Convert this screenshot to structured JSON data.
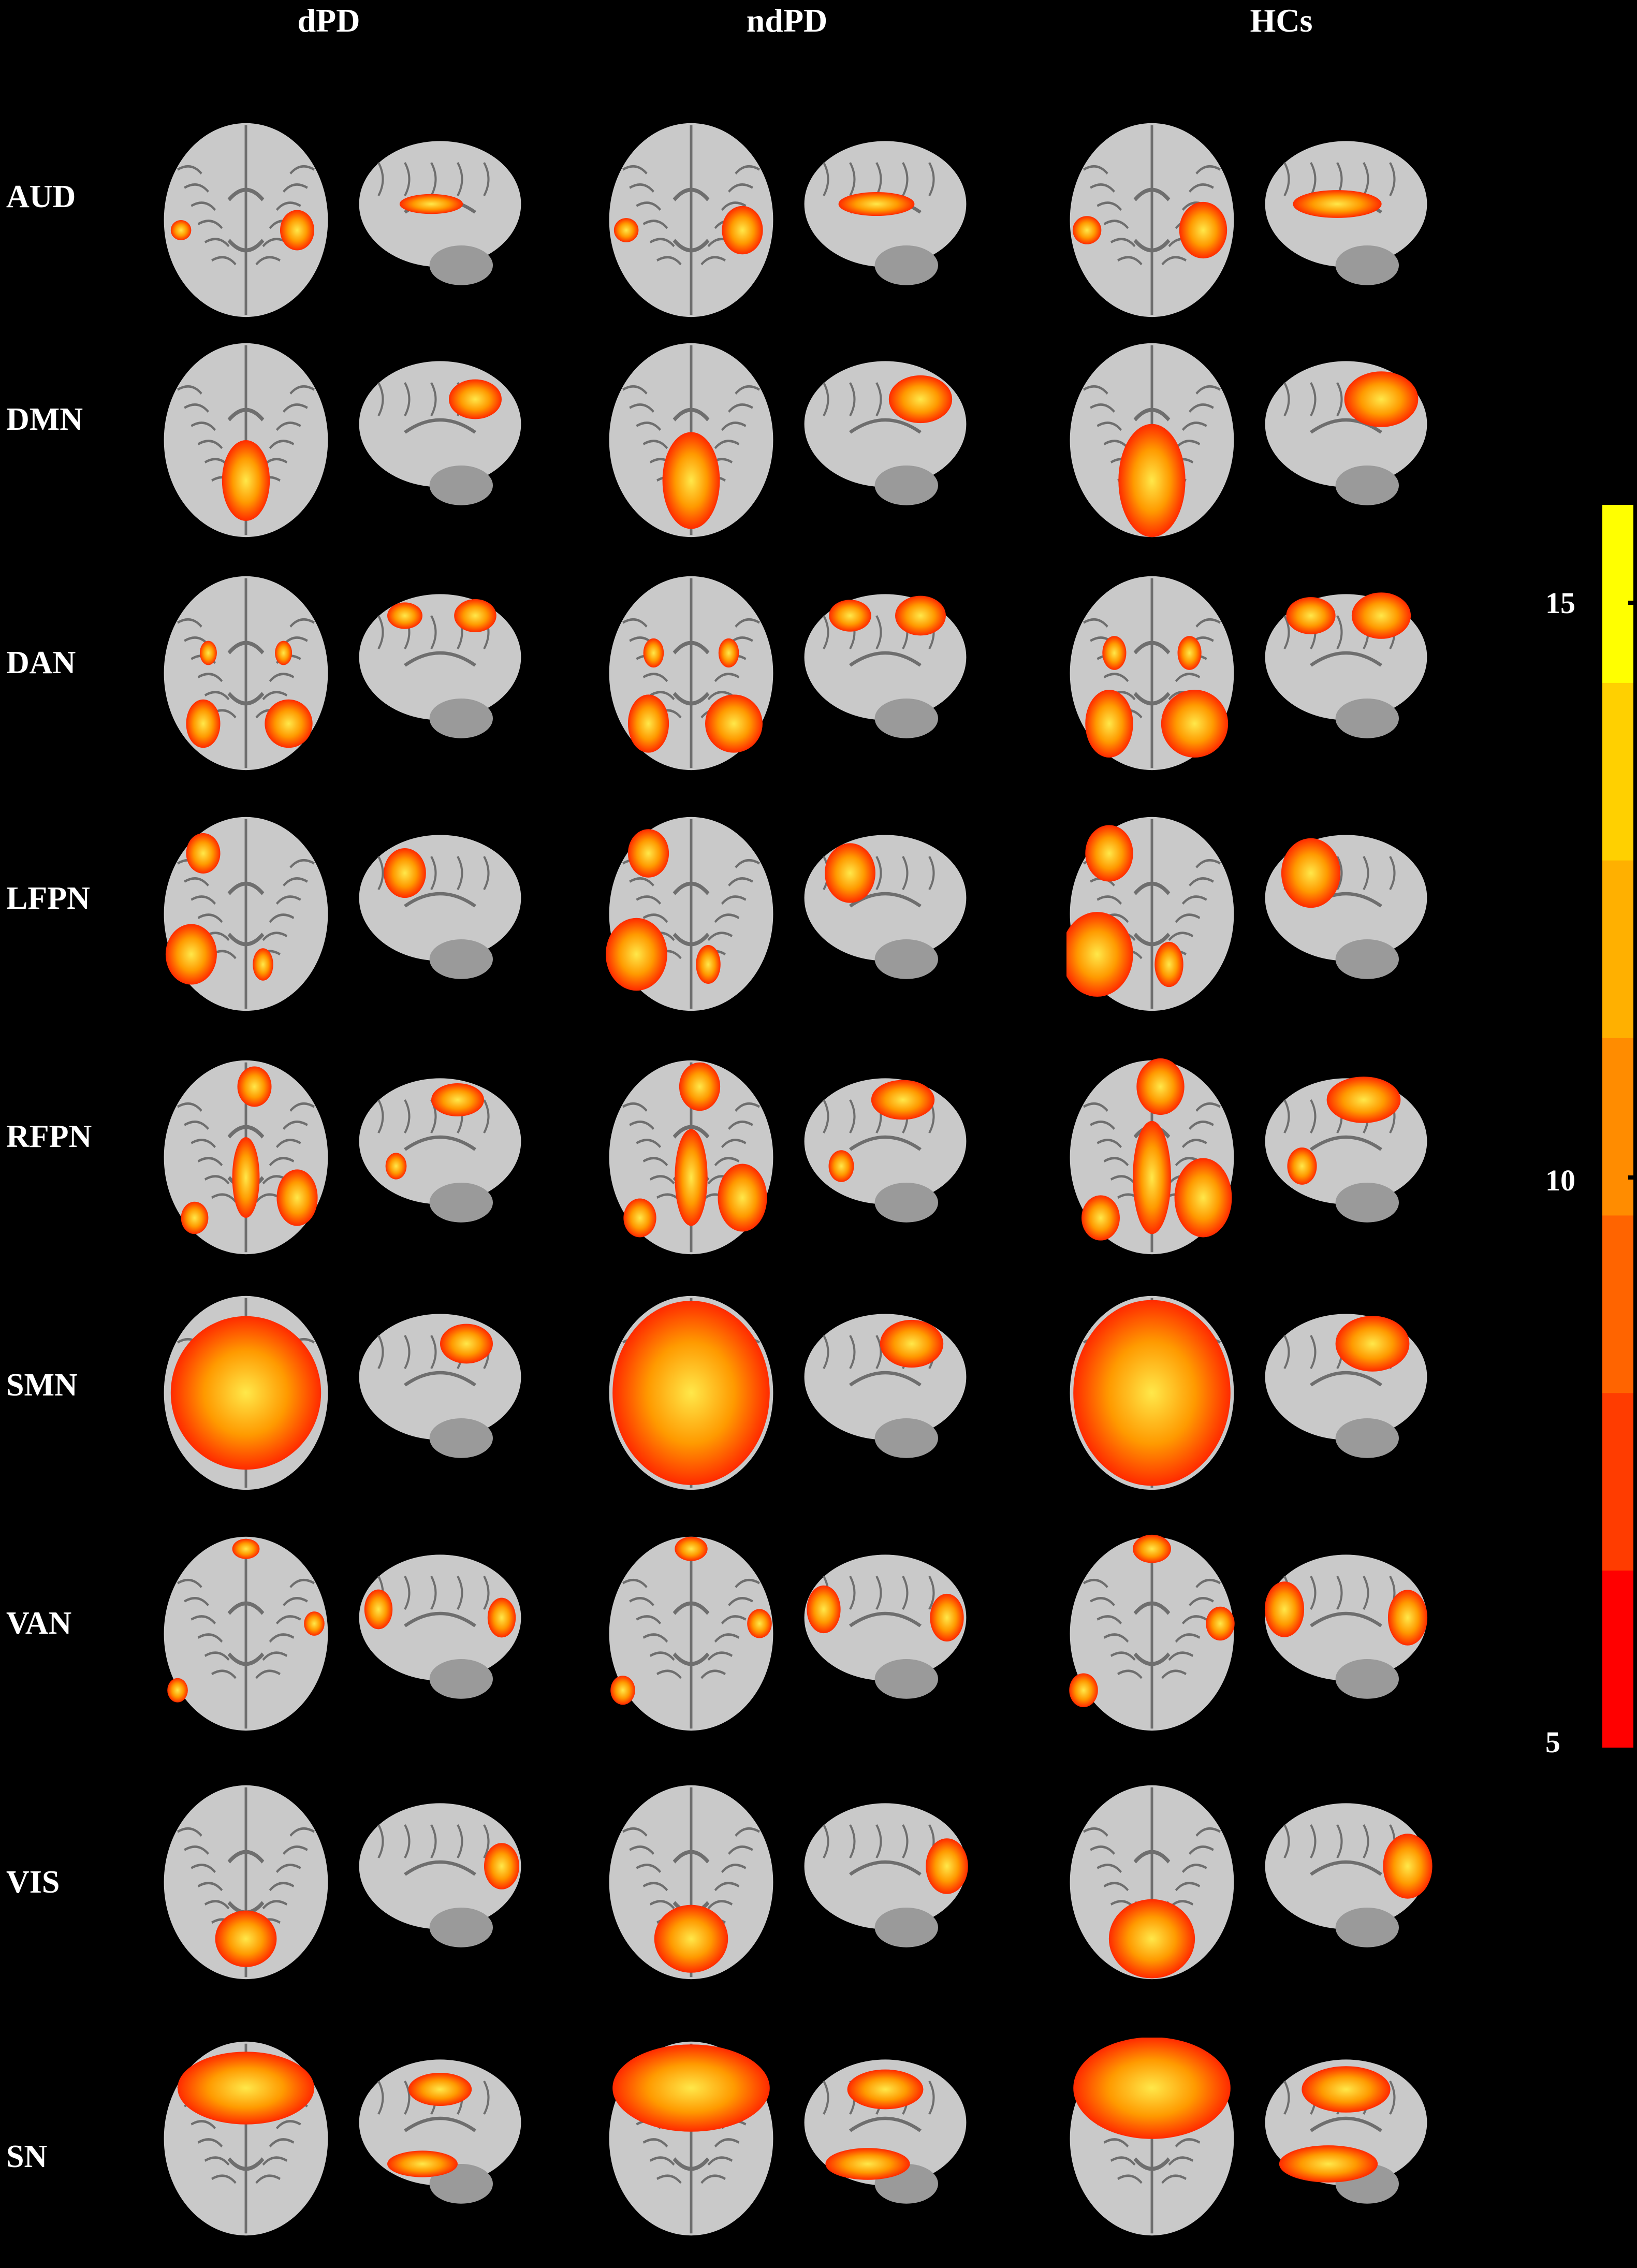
{
  "columns": [
    "dPD",
    "ndPD",
    "HCs"
  ],
  "rows": [
    "AUD",
    "DMN",
    "DAN",
    "LFPN",
    "RFPN",
    "SMN",
    "VAN",
    "VIS",
    "SN"
  ],
  "colorbar": {
    "ticks": [
      "15",
      "10",
      "5"
    ],
    "min": 5,
    "max": 16,
    "colors": [
      "#ff0000",
      "#ff3c00",
      "#ff6400",
      "#ff8c00",
      "#ffb000",
      "#ffd000",
      "#ffff00"
    ]
  },
  "colors": {
    "background": "#000000",
    "brain_tissue": "#c9c9c9",
    "brain_sulci": "#6e6e6e",
    "activation_low": "#ff2a00",
    "activation_high": "#ffe84a"
  }
}
